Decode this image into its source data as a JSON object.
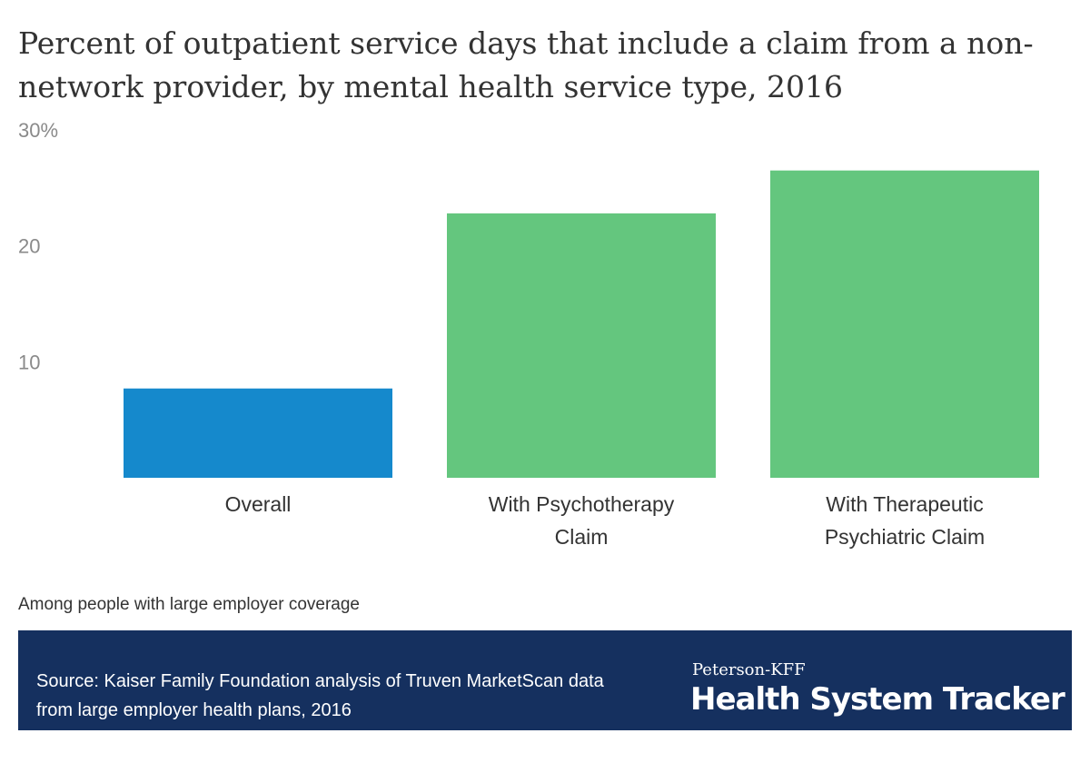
{
  "chart_data": {
    "type": "bar",
    "title": "Percent of outpatient service days that include a claim from a non-network provider, by mental health service type, 2016",
    "categories": [
      [
        "Overall"
      ],
      [
        "With Psychotherapy",
        "Claim"
      ],
      [
        "With Therapeutic",
        "Psychiatric Claim"
      ]
    ],
    "values": [
      7.7,
      22.8,
      26.5
    ],
    "colors": [
      "#1589cc",
      "#64c67e",
      "#64c67e"
    ],
    "ylim": [
      0,
      30
    ],
    "yticks": [
      {
        "value": 10,
        "label": "10"
      },
      {
        "value": 20,
        "label": "20"
      },
      {
        "value": 30,
        "label": "30%"
      }
    ],
    "grid": false,
    "xlabel": "",
    "ylabel": ""
  },
  "note": "Among people with large employer coverage",
  "footer": {
    "source": "Source: Kaiser Family Foundation analysis of Truven MarketScan data from large employer health plans, 2016",
    "brand_top": "Peterson-KFF",
    "brand_main": "Health System Tracker",
    "background": "#15305f"
  }
}
